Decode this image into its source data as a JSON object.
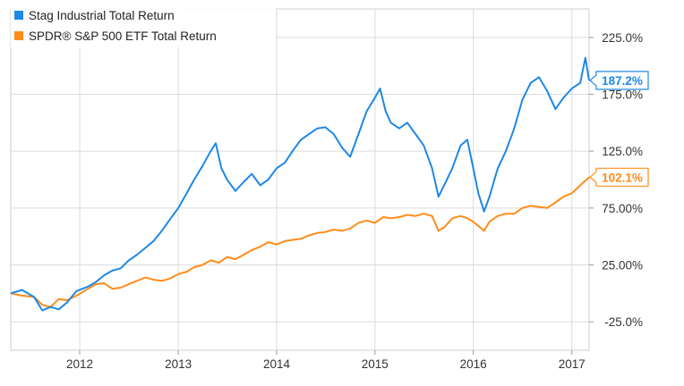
{
  "chart_data": {
    "type": "line",
    "title": "",
    "xlabel": "",
    "ylabel": "",
    "x_ticks": [
      "2012",
      "2013",
      "2014",
      "2015",
      "2016",
      "2017"
    ],
    "y_ticks": [
      "-25.0%",
      "25.00%",
      "75.00%",
      "125.0%",
      "175.0%",
      "225.0%"
    ],
    "ylim": [
      -50,
      250
    ],
    "xlim": [
      "2011-04-20",
      "2017-03-06"
    ],
    "grid": true,
    "legend_position": "top-left",
    "series": [
      {
        "name": "Stag Industrial Total Return",
        "color": "#1e88e5",
        "end_label": "187.2%",
        "points": [
          [
            "2011-04-20",
            0
          ],
          [
            "2011-06-01",
            3
          ],
          [
            "2011-07-15",
            -3
          ],
          [
            "2011-08-15",
            -15
          ],
          [
            "2011-09-15",
            -12
          ],
          [
            "2011-10-15",
            -14
          ],
          [
            "2011-11-15",
            -8
          ],
          [
            "2011-12-20",
            2
          ],
          [
            "2012-02-01",
            6
          ],
          [
            "2012-03-01",
            10
          ],
          [
            "2012-04-01",
            16
          ],
          [
            "2012-05-01",
            20
          ],
          [
            "2012-06-01",
            22
          ],
          [
            "2012-07-01",
            29
          ],
          [
            "2012-08-01",
            34
          ],
          [
            "2012-09-01",
            40
          ],
          [
            "2012-10-01",
            46
          ],
          [
            "2012-11-01",
            55
          ],
          [
            "2012-12-01",
            65
          ],
          [
            "2013-01-01",
            75
          ],
          [
            "2013-02-01",
            88
          ],
          [
            "2013-03-01",
            100
          ],
          [
            "2013-04-01",
            112
          ],
          [
            "2013-05-01",
            125
          ],
          [
            "2013-05-20",
            132
          ],
          [
            "2013-06-10",
            110
          ],
          [
            "2013-07-01",
            100
          ],
          [
            "2013-08-01",
            90
          ],
          [
            "2013-09-01",
            98
          ],
          [
            "2013-10-01",
            105
          ],
          [
            "2013-11-01",
            95
          ],
          [
            "2013-12-01",
            100
          ],
          [
            "2014-01-01",
            110
          ],
          [
            "2014-02-01",
            115
          ],
          [
            "2014-03-01",
            125
          ],
          [
            "2014-04-01",
            135
          ],
          [
            "2014-05-01",
            140
          ],
          [
            "2014-06-01",
            145
          ],
          [
            "2014-07-01",
            146
          ],
          [
            "2014-08-01",
            140
          ],
          [
            "2014-09-01",
            128
          ],
          [
            "2014-10-01",
            120
          ],
          [
            "2014-11-01",
            140
          ],
          [
            "2014-12-01",
            160
          ],
          [
            "2015-01-01",
            172
          ],
          [
            "2015-01-20",
            180
          ],
          [
            "2015-02-10",
            160
          ],
          [
            "2015-03-01",
            150
          ],
          [
            "2015-04-01",
            145
          ],
          [
            "2015-05-01",
            150
          ],
          [
            "2015-06-01",
            140
          ],
          [
            "2015-07-01",
            130
          ],
          [
            "2015-08-01",
            110
          ],
          [
            "2015-08-25",
            85
          ],
          [
            "2015-09-15",
            95
          ],
          [
            "2015-10-15",
            110
          ],
          [
            "2015-11-15",
            130
          ],
          [
            "2015-12-10",
            135
          ],
          [
            "2016-01-01",
            110
          ],
          [
            "2016-01-20",
            88
          ],
          [
            "2016-02-10",
            72
          ],
          [
            "2016-03-01",
            85
          ],
          [
            "2016-04-01",
            110
          ],
          [
            "2016-05-01",
            125
          ],
          [
            "2016-06-01",
            145
          ],
          [
            "2016-07-01",
            170
          ],
          [
            "2016-08-01",
            185
          ],
          [
            "2016-09-01",
            190
          ],
          [
            "2016-10-01",
            178
          ],
          [
            "2016-11-01",
            162
          ],
          [
            "2016-12-01",
            172
          ],
          [
            "2017-01-01",
            180
          ],
          [
            "2017-02-01",
            185
          ],
          [
            "2017-02-20",
            207
          ],
          [
            "2017-03-06",
            187.2
          ]
        ]
      },
      {
        "name": "SPDR® S&P 500 ETF Total Return",
        "color": "#ff8c1a",
        "end_label": "102.1%",
        "points": [
          [
            "2011-04-20",
            0
          ],
          [
            "2011-06-01",
            -2
          ],
          [
            "2011-07-15",
            -3
          ],
          [
            "2011-08-15",
            -10
          ],
          [
            "2011-09-15",
            -12
          ],
          [
            "2011-10-15",
            -5
          ],
          [
            "2011-11-15",
            -6
          ],
          [
            "2011-12-20",
            -2
          ],
          [
            "2012-02-01",
            4
          ],
          [
            "2012-03-01",
            8
          ],
          [
            "2012-04-01",
            9
          ],
          [
            "2012-05-01",
            4
          ],
          [
            "2012-06-01",
            5
          ],
          [
            "2012-07-01",
            8
          ],
          [
            "2012-08-01",
            11
          ],
          [
            "2012-09-01",
            14
          ],
          [
            "2012-10-01",
            12
          ],
          [
            "2012-11-01",
            11
          ],
          [
            "2012-12-01",
            13
          ],
          [
            "2013-01-01",
            17
          ],
          [
            "2013-02-01",
            19
          ],
          [
            "2013-03-01",
            23
          ],
          [
            "2013-04-01",
            25
          ],
          [
            "2013-05-01",
            29
          ],
          [
            "2013-06-01",
            27
          ],
          [
            "2013-07-01",
            32
          ],
          [
            "2013-08-01",
            30
          ],
          [
            "2013-09-01",
            34
          ],
          [
            "2013-10-01",
            38
          ],
          [
            "2013-11-01",
            41
          ],
          [
            "2013-12-01",
            45
          ],
          [
            "2014-01-01",
            43
          ],
          [
            "2014-02-01",
            46
          ],
          [
            "2014-03-01",
            47
          ],
          [
            "2014-04-01",
            48
          ],
          [
            "2014-05-01",
            51
          ],
          [
            "2014-06-01",
            53
          ],
          [
            "2014-07-01",
            54
          ],
          [
            "2014-08-01",
            56
          ],
          [
            "2014-09-01",
            55
          ],
          [
            "2014-10-01",
            57
          ],
          [
            "2014-11-01",
            62
          ],
          [
            "2014-12-01",
            64
          ],
          [
            "2015-01-01",
            62
          ],
          [
            "2015-02-01",
            67
          ],
          [
            "2015-03-01",
            66
          ],
          [
            "2015-04-01",
            67
          ],
          [
            "2015-05-01",
            69
          ],
          [
            "2015-06-01",
            68
          ],
          [
            "2015-07-01",
            70
          ],
          [
            "2015-08-01",
            68
          ],
          [
            "2015-08-25",
            55
          ],
          [
            "2015-09-15",
            58
          ],
          [
            "2015-10-15",
            66
          ],
          [
            "2015-11-15",
            68
          ],
          [
            "2015-12-10",
            66
          ],
          [
            "2016-01-01",
            63
          ],
          [
            "2016-02-10",
            55
          ],
          [
            "2016-03-01",
            63
          ],
          [
            "2016-04-01",
            68
          ],
          [
            "2016-05-01",
            70
          ],
          [
            "2016-06-01",
            70
          ],
          [
            "2016-07-01",
            75
          ],
          [
            "2016-08-01",
            77
          ],
          [
            "2016-09-01",
            76
          ],
          [
            "2016-10-01",
            75
          ],
          [
            "2016-11-01",
            80
          ],
          [
            "2016-12-01",
            85
          ],
          [
            "2017-01-01",
            88
          ],
          [
            "2017-02-01",
            95
          ],
          [
            "2017-03-06",
            102.1
          ]
        ]
      }
    ]
  }
}
